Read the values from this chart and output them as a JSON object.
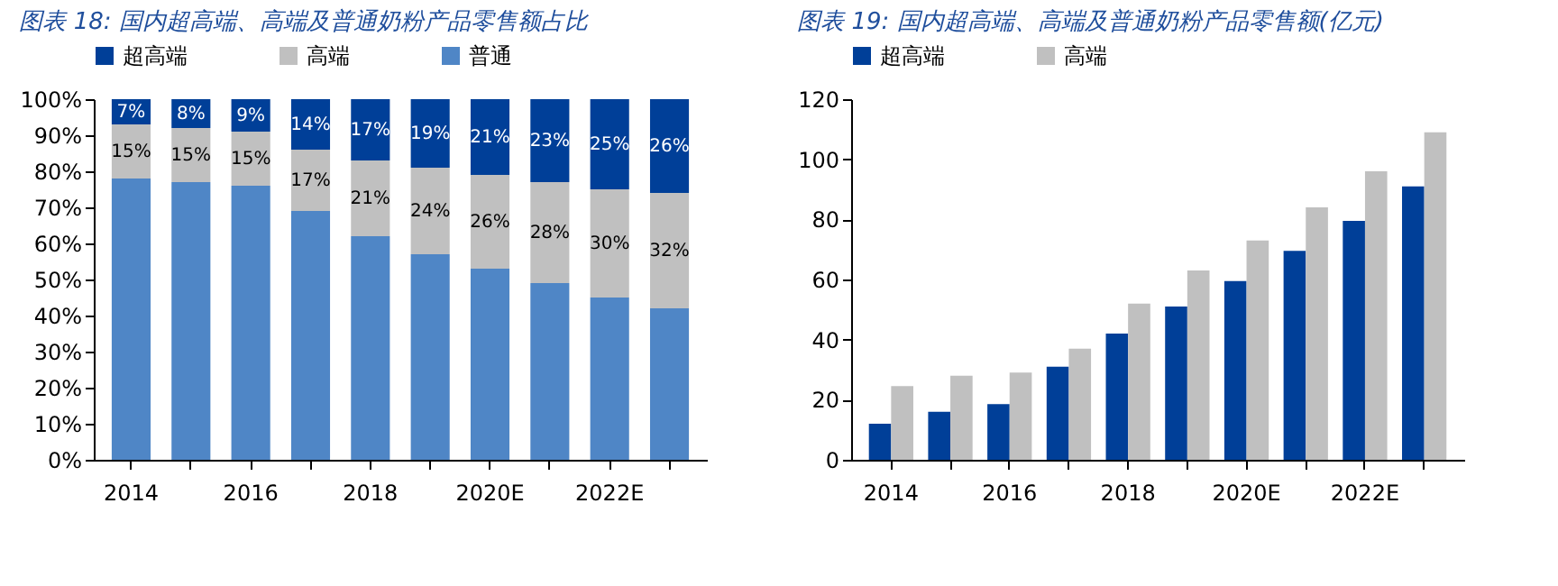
{
  "chart_data": [
    {
      "type": "bar",
      "stacked": true,
      "title": "图表 18: 国内超高端、高端及普通奶粉产品零售额占比",
      "categories": [
        "2014",
        null,
        "2016",
        null,
        "2018",
        null,
        "2020E",
        null,
        "2022E",
        null
      ],
      "ylim": [
        0,
        100
      ],
      "yticks": [
        {
          "value": 0,
          "label": "0%"
        },
        {
          "value": 10,
          "label": "10%"
        },
        {
          "value": 20,
          "label": "20%"
        },
        {
          "value": 30,
          "label": "30%"
        },
        {
          "value": 40,
          "label": "40%"
        },
        {
          "value": 50,
          "label": "50%"
        },
        {
          "value": 60,
          "label": "60%"
        },
        {
          "value": 70,
          "label": "70%"
        },
        {
          "value": 80,
          "label": "80%"
        },
        {
          "value": 90,
          "label": "90%"
        },
        {
          "value": 100,
          "label": "100%"
        }
      ],
      "legend": "top",
      "grid": false,
      "series": [
        {
          "name": "普通",
          "color": "#4f86c6",
          "values": [
            78,
            77,
            76,
            69,
            62,
            57,
            53,
            49,
            45,
            42
          ]
        },
        {
          "name": "高端",
          "color": "#c0c0c0",
          "values": [
            15,
            15,
            15,
            17,
            21,
            24,
            26,
            28,
            30,
            32
          ],
          "value_labels": [
            "15%",
            "15%",
            "15%",
            "17%",
            "21%",
            "24%",
            "26%",
            "28%",
            "30%",
            "32%"
          ]
        },
        {
          "name": "超高端",
          "color": "#003f98",
          "values": [
            7,
            8,
            9,
            14,
            17,
            19,
            21,
            23,
            25,
            26
          ],
          "value_labels": [
            "7%",
            "8%",
            "9%",
            "14%",
            "17%",
            "19%",
            "21%",
            "23%",
            "25%",
            "26%"
          ]
        }
      ]
    },
    {
      "type": "bar",
      "title": "图表 19: 国内超高端、高端及普通奶粉产品零售额(亿元)",
      "categories": [
        "2014",
        null,
        "2016",
        null,
        "2018",
        null,
        "2020E",
        null,
        "2022E",
        null
      ],
      "ylim": [
        0,
        120
      ],
      "yticks": [
        0,
        20,
        40,
        60,
        80,
        100,
        120
      ],
      "legend": "top",
      "grid": false,
      "series": [
        {
          "name": "超高端",
          "color": "#003f98",
          "values": [
            12,
            16,
            18.5,
            31,
            42,
            51,
            59.5,
            69.5,
            79.5,
            91
          ]
        },
        {
          "name": "高端",
          "color": "#c0c0c0",
          "values": [
            24.5,
            28,
            29,
            37,
            52,
            63,
            73,
            84,
            96,
            109
          ]
        }
      ]
    }
  ]
}
